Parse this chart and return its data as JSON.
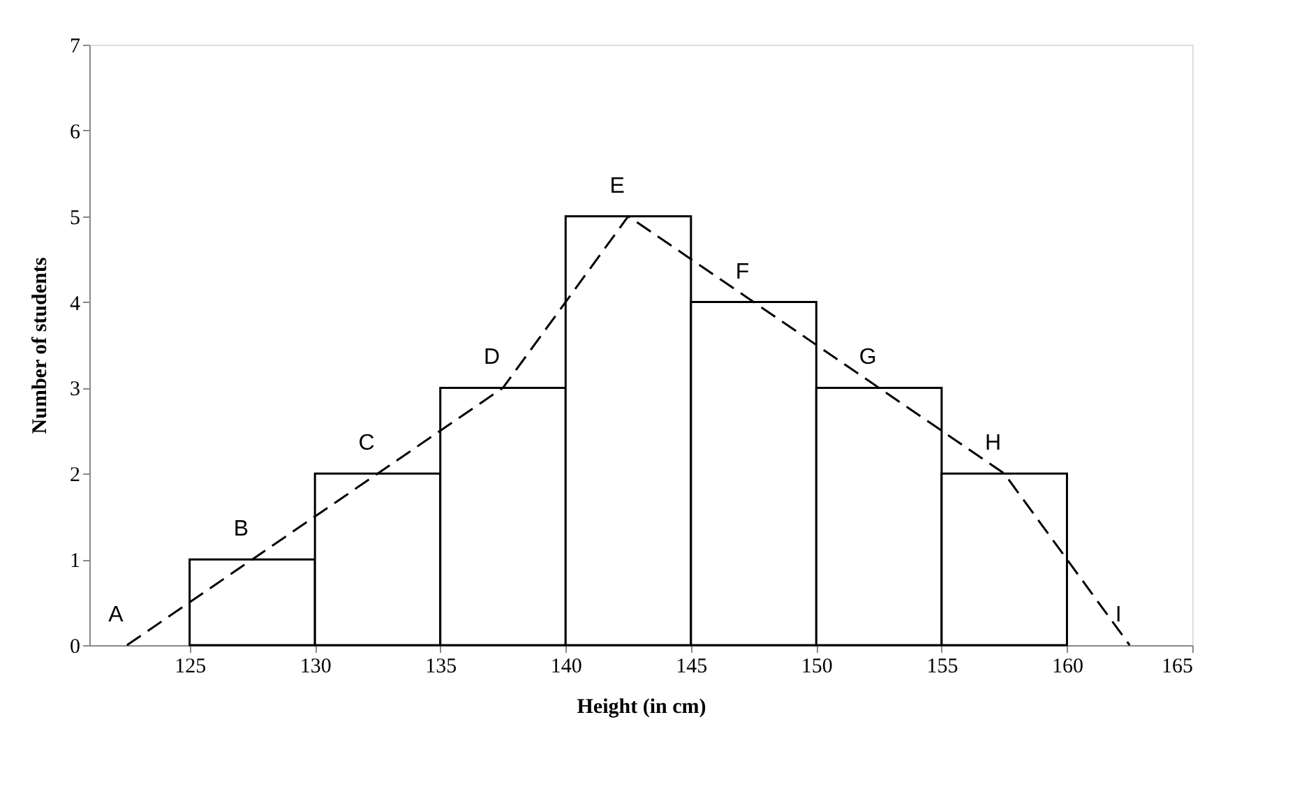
{
  "chart_data": {
    "type": "histogram",
    "xlabel": "Height (in cm)",
    "ylabel": "Number of students",
    "bins": [
      125,
      130,
      135,
      140,
      145,
      150,
      155,
      160
    ],
    "values": [
      1,
      2,
      3,
      5,
      4,
      3,
      2
    ],
    "color": "#ffffff",
    "series": [
      {
        "type": "line",
        "x": [
          122.5,
          127.5,
          132.5,
          137.5,
          142.5,
          147.5,
          152.5,
          157.5,
          162.5
        ],
        "values": [
          0,
          1,
          2,
          3,
          5,
          4,
          3,
          2,
          0
        ],
        "color": "#000000",
        "line_style": "dashed"
      }
    ],
    "annotations": [
      {
        "text": "A",
        "x": 122.5,
        "y": 0
      },
      {
        "text": "B",
        "x": 127.5,
        "y": 1
      },
      {
        "text": "C",
        "x": 132.5,
        "y": 2
      },
      {
        "text": "D",
        "x": 137.5,
        "y": 3
      },
      {
        "text": "E",
        "x": 142.5,
        "y": 5
      },
      {
        "text": "F",
        "x": 147.5,
        "y": 4
      },
      {
        "text": "G",
        "x": 152.5,
        "y": 3
      },
      {
        "text": "H",
        "x": 157.5,
        "y": 2
      },
      {
        "text": "I",
        "x": 162.5,
        "y": 0
      }
    ],
    "xlim": [
      121,
      165
    ],
    "xticks": [
      125,
      130,
      135,
      140,
      145,
      150,
      155,
      160,
      165
    ],
    "ylim": [
      0,
      7
    ],
    "yticks": [
      0,
      1,
      2,
      3,
      4,
      5,
      6,
      7
    ],
    "grid": false
  }
}
